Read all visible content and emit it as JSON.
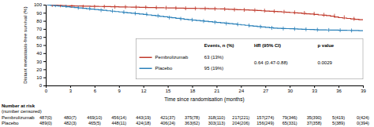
{
  "chart_data": {
    "type": "step",
    "xlabel": "Time since randomisation (months)",
    "ylabel": "Distant metastasis-free survival (%)",
    "xlim": [
      0,
      39
    ],
    "ylim": [
      0,
      100
    ],
    "xticks": [
      0,
      3,
      6,
      9,
      12,
      15,
      18,
      21,
      24,
      27,
      30,
      33,
      36,
      39
    ],
    "yticks": [
      0,
      10,
      20,
      30,
      40,
      50,
      60,
      70,
      80,
      90,
      100
    ],
    "legend": "lower right",
    "grid": false,
    "series": [
      {
        "name": "Pembrolizumab",
        "color": "#c0392b",
        "x": [
          0,
          0.3,
          0.6,
          1.0,
          1.5,
          2.0,
          2.5,
          3.0,
          3.5,
          4.0,
          4.5,
          5.0,
          5.5,
          6.0,
          6.5,
          7.0,
          7.5,
          8.0,
          8.5,
          9.0,
          9.5,
          10.0,
          10.5,
          11.0,
          11.5,
          12.0,
          12.5,
          13.0,
          13.5,
          14.0,
          14.5,
          15.0,
          15.5,
          16.0,
          16.5,
          17.0,
          17.5,
          18.0,
          18.5,
          19.0,
          19.5,
          20.0,
          20.5,
          21.0,
          21.5,
          22.0,
          22.5,
          23.0,
          23.5,
          24.0,
          24.5,
          25.0,
          25.5,
          26.0,
          26.5,
          27.0,
          27.5,
          28.0,
          28.5,
          29.0,
          29.5,
          30.0,
          30.5,
          31.0,
          31.5,
          32.0,
          32.5,
          33.0,
          33.5,
          34.0,
          34.5,
          35.0,
          35.5,
          36.0,
          36.5,
          37.0,
          37.5,
          38.0,
          38.5,
          39.0
        ],
        "values": [
          100,
          99.8,
          99.6,
          99.4,
          99.2,
          99.0,
          98.8,
          98.6,
          98.5,
          98.4,
          98.2,
          98.1,
          98.0,
          97.9,
          97.8,
          97.7,
          97.6,
          97.5,
          97.4,
          97.3,
          97.2,
          97.1,
          97.0,
          96.9,
          96.8,
          96.7,
          96.5,
          96.4,
          96.3,
          96.2,
          96.1,
          96.0,
          95.9,
          95.8,
          95.7,
          95.6,
          95.5,
          95.5,
          95.4,
          95.3,
          95.2,
          95.1,
          95.0,
          94.9,
          94.7,
          94.5,
          94.3,
          94.1,
          93.9,
          93.7,
          93.5,
          93.3,
          93.0,
          92.8,
          92.5,
          92.2,
          91.9,
          91.6,
          91.3,
          91.0,
          90.7,
          90.3,
          90.0,
          89.6,
          89.2,
          88.8,
          88.4,
          87.9,
          87.4,
          87.0,
          86.5,
          85.8,
          84.8,
          84.0,
          83.5,
          83.0,
          82.5,
          82.0,
          81.5,
          81.0
        ],
        "censor_x": [
          0.8,
          1.8,
          3.2,
          4.6,
          6.0,
          7.2,
          8.5,
          9.8,
          11.1,
          12.3,
          13.6,
          14.8,
          16.0,
          17.2,
          18.4,
          19.6,
          20.8,
          22.0,
          23.2,
          24.4,
          25.7,
          26.9,
          28.1,
          29.3,
          30.6,
          31.8,
          33.0,
          34.2,
          35.5,
          36.7,
          37.9
        ],
        "censor_y": [
          99.6,
          99.2,
          98.6,
          98.2,
          97.85,
          97.65,
          97.45,
          97.25,
          97.0,
          96.75,
          96.45,
          96.15,
          95.85,
          95.55,
          95.35,
          95.15,
          94.95,
          94.6,
          94.0,
          93.6,
          93.15,
          92.65,
          91.75,
          91.15,
          90.5,
          89.8,
          88.8,
          87.5,
          86.3,
          84.4,
          82.5
        ],
        "events": "63 (13%)",
        "at_risk": [
          "487(0)",
          "480(7)",
          "469(10)",
          "456(14)",
          "443(19)",
          "421(37)",
          "375(78)",
          "318(110)",
          "217(221)",
          "157(274)",
          "79(346)",
          "35(390)",
          "5(419)",
          "0(424)"
        ]
      },
      {
        "name": "Placebo",
        "color": "#2980b9",
        "x": [
          0,
          0.3,
          0.6,
          1.0,
          1.5,
          2.0,
          2.5,
          3.0,
          3.5,
          4.0,
          4.5,
          5.0,
          5.5,
          6.0,
          6.5,
          7.0,
          7.5,
          8.0,
          8.5,
          9.0,
          9.5,
          10.0,
          10.5,
          11.0,
          11.5,
          12.0,
          12.5,
          13.0,
          13.5,
          14.0,
          14.5,
          15.0,
          15.5,
          16.0,
          16.5,
          17.0,
          17.5,
          18.0,
          18.5,
          19.0,
          19.5,
          20.0,
          20.5,
          21.0,
          21.5,
          22.0,
          22.5,
          23.0,
          23.5,
          24.0,
          24.5,
          25.0,
          25.5,
          26.0,
          26.5,
          27.0,
          27.5,
          28.0,
          28.5,
          29.0,
          29.5,
          30.0,
          30.5,
          31.0,
          31.5,
          32.0,
          32.5,
          33.0,
          33.5,
          34.0,
          34.5,
          35.0,
          35.5,
          36.0,
          36.5,
          37.0,
          37.5,
          38.0,
          38.5,
          39.0
        ],
        "values": [
          100,
          99.6,
          99.2,
          98.8,
          98.4,
          98.0,
          97.5,
          97.0,
          96.5,
          96.0,
          95.5,
          95.0,
          94.5,
          94.0,
          93.5,
          93.0,
          92.5,
          92.0,
          91.5,
          91.0,
          90.5,
          90.0,
          89.5,
          89.0,
          88.5,
          88.0,
          87.4,
          86.8,
          86.2,
          85.6,
          85.0,
          84.4,
          83.8,
          83.2,
          82.6,
          82.0,
          81.5,
          81.0,
          80.5,
          80.0,
          79.5,
          79.0,
          78.5,
          78.0,
          77.5,
          77.0,
          76.5,
          76.0,
          75.5,
          75.0,
          74.5,
          74.0,
          73.5,
          73.0,
          72.5,
          72.0,
          71.5,
          71.0,
          70.8,
          70.6,
          70.4,
          70.2,
          70.0,
          69.8,
          69.6,
          69.4,
          69.2,
          69.0,
          68.9,
          68.8,
          68.7,
          68.6,
          68.5,
          68.4,
          68.3,
          68.2,
          68.1,
          68.0,
          67.9,
          67.8
        ],
        "censor_x": [
          1.2,
          2.5,
          4.0,
          5.4,
          6.8,
          8.2,
          9.6,
          11.0,
          12.4,
          13.8,
          15.2,
          16.6,
          18.0,
          19.4,
          20.8,
          22.2,
          23.6,
          25.0,
          26.4,
          27.8,
          29.2,
          30.6,
          32.0,
          33.4,
          34.8,
          36.2,
          37.6
        ],
        "censor_y": [
          99.4,
          98.6,
          96.25,
          95.25,
          93.25,
          92.25,
          90.75,
          89.25,
          88.25,
          86.25,
          84.1,
          82.6,
          81.25,
          79.75,
          78.25,
          76.75,
          75.75,
          74.25,
          72.75,
          71.25,
          70.5,
          70.1,
          69.5,
          69.0,
          68.6,
          68.35,
          68.05
        ],
        "events": "95 (19%)",
        "at_risk": [
          "489(0)",
          "482(3)",
          "465(5)",
          "448(11)",
          "424(18)",
          "406(24)",
          "363(62)",
          "303(113)",
          "204(206)",
          "156(249)",
          "65(331)",
          "37(358)",
          "5(389)",
          "0(394)"
        ]
      }
    ],
    "table_headers": [
      "Events, n (%)",
      "HR (95% CI)",
      "p value"
    ],
    "hazard_ratio": "0.64 (0.47-0.88)",
    "p_value": "0.0029",
    "risk_title": "Number at risk",
    "risk_subtitle": "(number censored)",
    "risk_times": [
      0,
      3,
      6,
      9,
      12,
      15,
      18,
      21,
      24,
      27,
      30,
      33,
      36,
      39
    ]
  }
}
